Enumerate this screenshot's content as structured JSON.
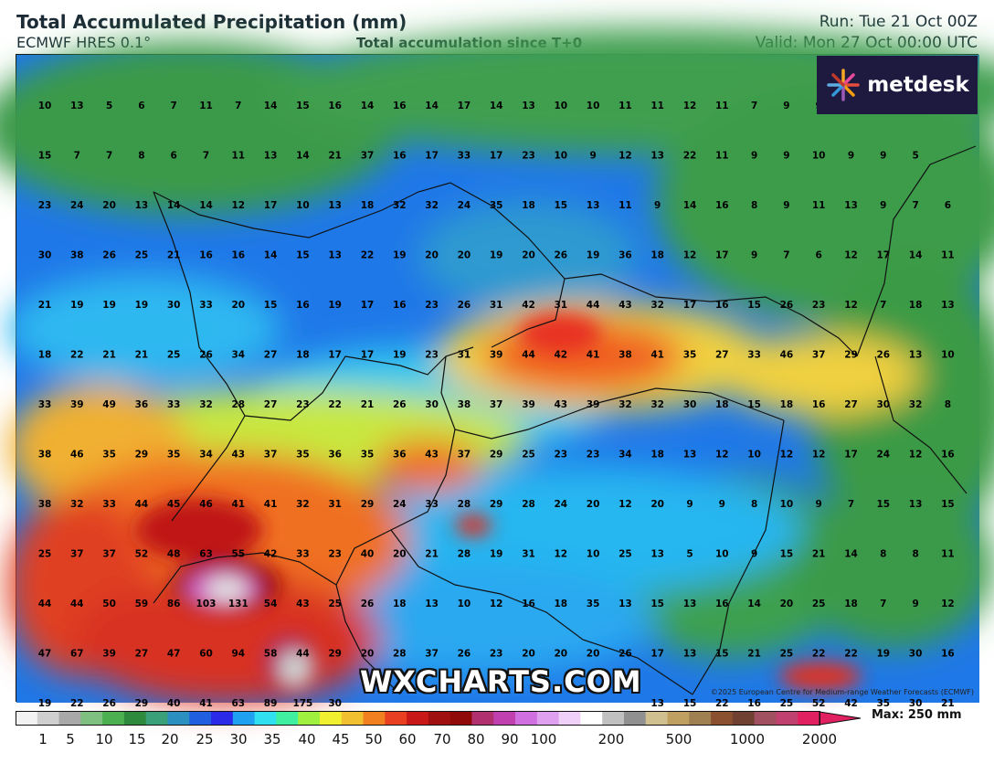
{
  "header": {
    "title": "Total Accumulated Precipitation (mm)",
    "model": "ECMWF HRES 0.1°",
    "subtitle": "Total accumulation since T+0",
    "run": "Run: Tue 21 Oct 00Z",
    "valid": "Valid: Mon 27 Oct 00:00 UTC"
  },
  "logo": {
    "text": "metdesk",
    "icon": "flower-burst-icon",
    "bg": "#1e1a3f"
  },
  "watermark": "WXCHARTS.COM",
  "copyright": "©2025 European Centre for Medium-range Weather Forecasts (ECMWF)",
  "colorbar": {
    "max_label": "Max: 250 mm",
    "ticks": [
      "1",
      "5",
      "10",
      "15",
      "20",
      "25",
      "30",
      "35",
      "40",
      "45",
      "50",
      "60",
      "70",
      "80",
      "90",
      "100",
      "200",
      "500",
      "1000",
      "2000"
    ],
    "colors": [
      "#f2f2f2",
      "#cfcfcf",
      "#a8a8a8",
      "#7fbf7f",
      "#4caf50",
      "#2e8b3e",
      "#3aa07a",
      "#2b8fbf",
      "#2060e0",
      "#2a2ae8",
      "#20a0f0",
      "#30e0f0",
      "#40f0a0",
      "#a0f040",
      "#f0f030",
      "#f0c030",
      "#f08020",
      "#e84020",
      "#c81818",
      "#a01010",
      "#900a0a",
      "#b03070",
      "#c040b0",
      "#d070e0",
      "#e0a0f0",
      "#f0d0f8",
      "#ffffff",
      "#c0c0c0",
      "#909090",
      "#d0c090",
      "#c0a060",
      "#a08050",
      "#8a5030",
      "#704030",
      "#a05060",
      "#c04070",
      "#e02060"
    ]
  },
  "grid_values": [
    [
      "10",
      "13",
      "5",
      "6",
      "7",
      "11",
      "7",
      "14",
      "15",
      "16",
      "14",
      "16",
      "14",
      "17",
      "14",
      "13",
      "10",
      "10",
      "11",
      "11",
      "12",
      "11",
      "7",
      "9",
      "9"
    ],
    [
      "15",
      "7",
      "7",
      "8",
      "6",
      "7",
      "11",
      "13",
      "14",
      "21",
      "37",
      "16",
      "17",
      "33",
      "17",
      "23",
      "10",
      "9",
      "12",
      "13",
      "22",
      "11",
      "9",
      "9",
      "10",
      "9",
      "9",
      "5"
    ],
    [
      "23",
      "24",
      "20",
      "13",
      "14",
      "14",
      "12",
      "17",
      "10",
      "13",
      "18",
      "32",
      "32",
      "24",
      "35",
      "18",
      "15",
      "13",
      "11",
      "9",
      "14",
      "16",
      "8",
      "9",
      "11",
      "13",
      "9",
      "7",
      "6"
    ],
    [
      "30",
      "38",
      "26",
      "25",
      "21",
      "16",
      "16",
      "14",
      "15",
      "13",
      "22",
      "19",
      "20",
      "20",
      "19",
      "20",
      "26",
      "19",
      "36",
      "18",
      "12",
      "17",
      "9",
      "7",
      "6",
      "12",
      "17",
      "14",
      "11"
    ],
    [
      "21",
      "19",
      "19",
      "19",
      "30",
      "33",
      "20",
      "15",
      "16",
      "19",
      "17",
      "16",
      "23",
      "26",
      "31",
      "42",
      "31",
      "44",
      "43",
      "32",
      "17",
      "16",
      "15",
      "26",
      "23",
      "12",
      "7",
      "18",
      "13"
    ],
    [
      "18",
      "22",
      "21",
      "21",
      "25",
      "26",
      "34",
      "27",
      "18",
      "17",
      "17",
      "19",
      "23",
      "31",
      "39",
      "44",
      "42",
      "41",
      "38",
      "41",
      "35",
      "27",
      "33",
      "46",
      "37",
      "29",
      "26",
      "13",
      "10"
    ],
    [
      "33",
      "39",
      "49",
      "36",
      "33",
      "32",
      "28",
      "27",
      "23",
      "22",
      "21",
      "26",
      "30",
      "38",
      "37",
      "39",
      "43",
      "39",
      "32",
      "32",
      "30",
      "18",
      "15",
      "18",
      "16",
      "27",
      "30",
      "32",
      "8"
    ],
    [
      "38",
      "46",
      "35",
      "29",
      "35",
      "34",
      "43",
      "37",
      "35",
      "36",
      "35",
      "36",
      "43",
      "37",
      "29",
      "25",
      "23",
      "23",
      "34",
      "18",
      "13",
      "12",
      "10",
      "12",
      "12",
      "17",
      "24",
      "12",
      "16"
    ],
    [
      "38",
      "32",
      "33",
      "44",
      "45",
      "46",
      "41",
      "41",
      "32",
      "31",
      "29",
      "24",
      "33",
      "28",
      "29",
      "28",
      "24",
      "20",
      "12",
      "20",
      "9",
      "9",
      "8",
      "10",
      "9",
      "7",
      "15",
      "13",
      "15"
    ],
    [
      "25",
      "37",
      "37",
      "52",
      "48",
      "63",
      "55",
      "42",
      "33",
      "23",
      "40",
      "20",
      "21",
      "28",
      "19",
      "31",
      "12",
      "10",
      "25",
      "13",
      "5",
      "10",
      "9",
      "15",
      "21",
      "14",
      "8",
      "8",
      "11"
    ],
    [
      "44",
      "44",
      "50",
      "59",
      "86",
      "103",
      "131",
      "54",
      "43",
      "25",
      "26",
      "18",
      "13",
      "10",
      "12",
      "16",
      "18",
      "35",
      "13",
      "15",
      "13",
      "16",
      "14",
      "20",
      "25",
      "18",
      "7",
      "9",
      "12"
    ],
    [
      "47",
      "67",
      "39",
      "27",
      "47",
      "60",
      "94",
      "58",
      "44",
      "29",
      "20",
      "28",
      "37",
      "26",
      "23",
      "20",
      "20",
      "20",
      "26",
      "17",
      "13",
      "15",
      "21",
      "25",
      "22",
      "22",
      "19",
      "30",
      "16"
    ],
    [
      "19",
      "22",
      "26",
      "29",
      "40",
      "41",
      "63",
      "89",
      "175",
      "30",
      "",
      "",
      "",
      "",
      "",
      "",
      "",
      "",
      "",
      "13",
      "15",
      "22",
      "16",
      "25",
      "52",
      "42",
      "35",
      "30",
      "21"
    ]
  ]
}
